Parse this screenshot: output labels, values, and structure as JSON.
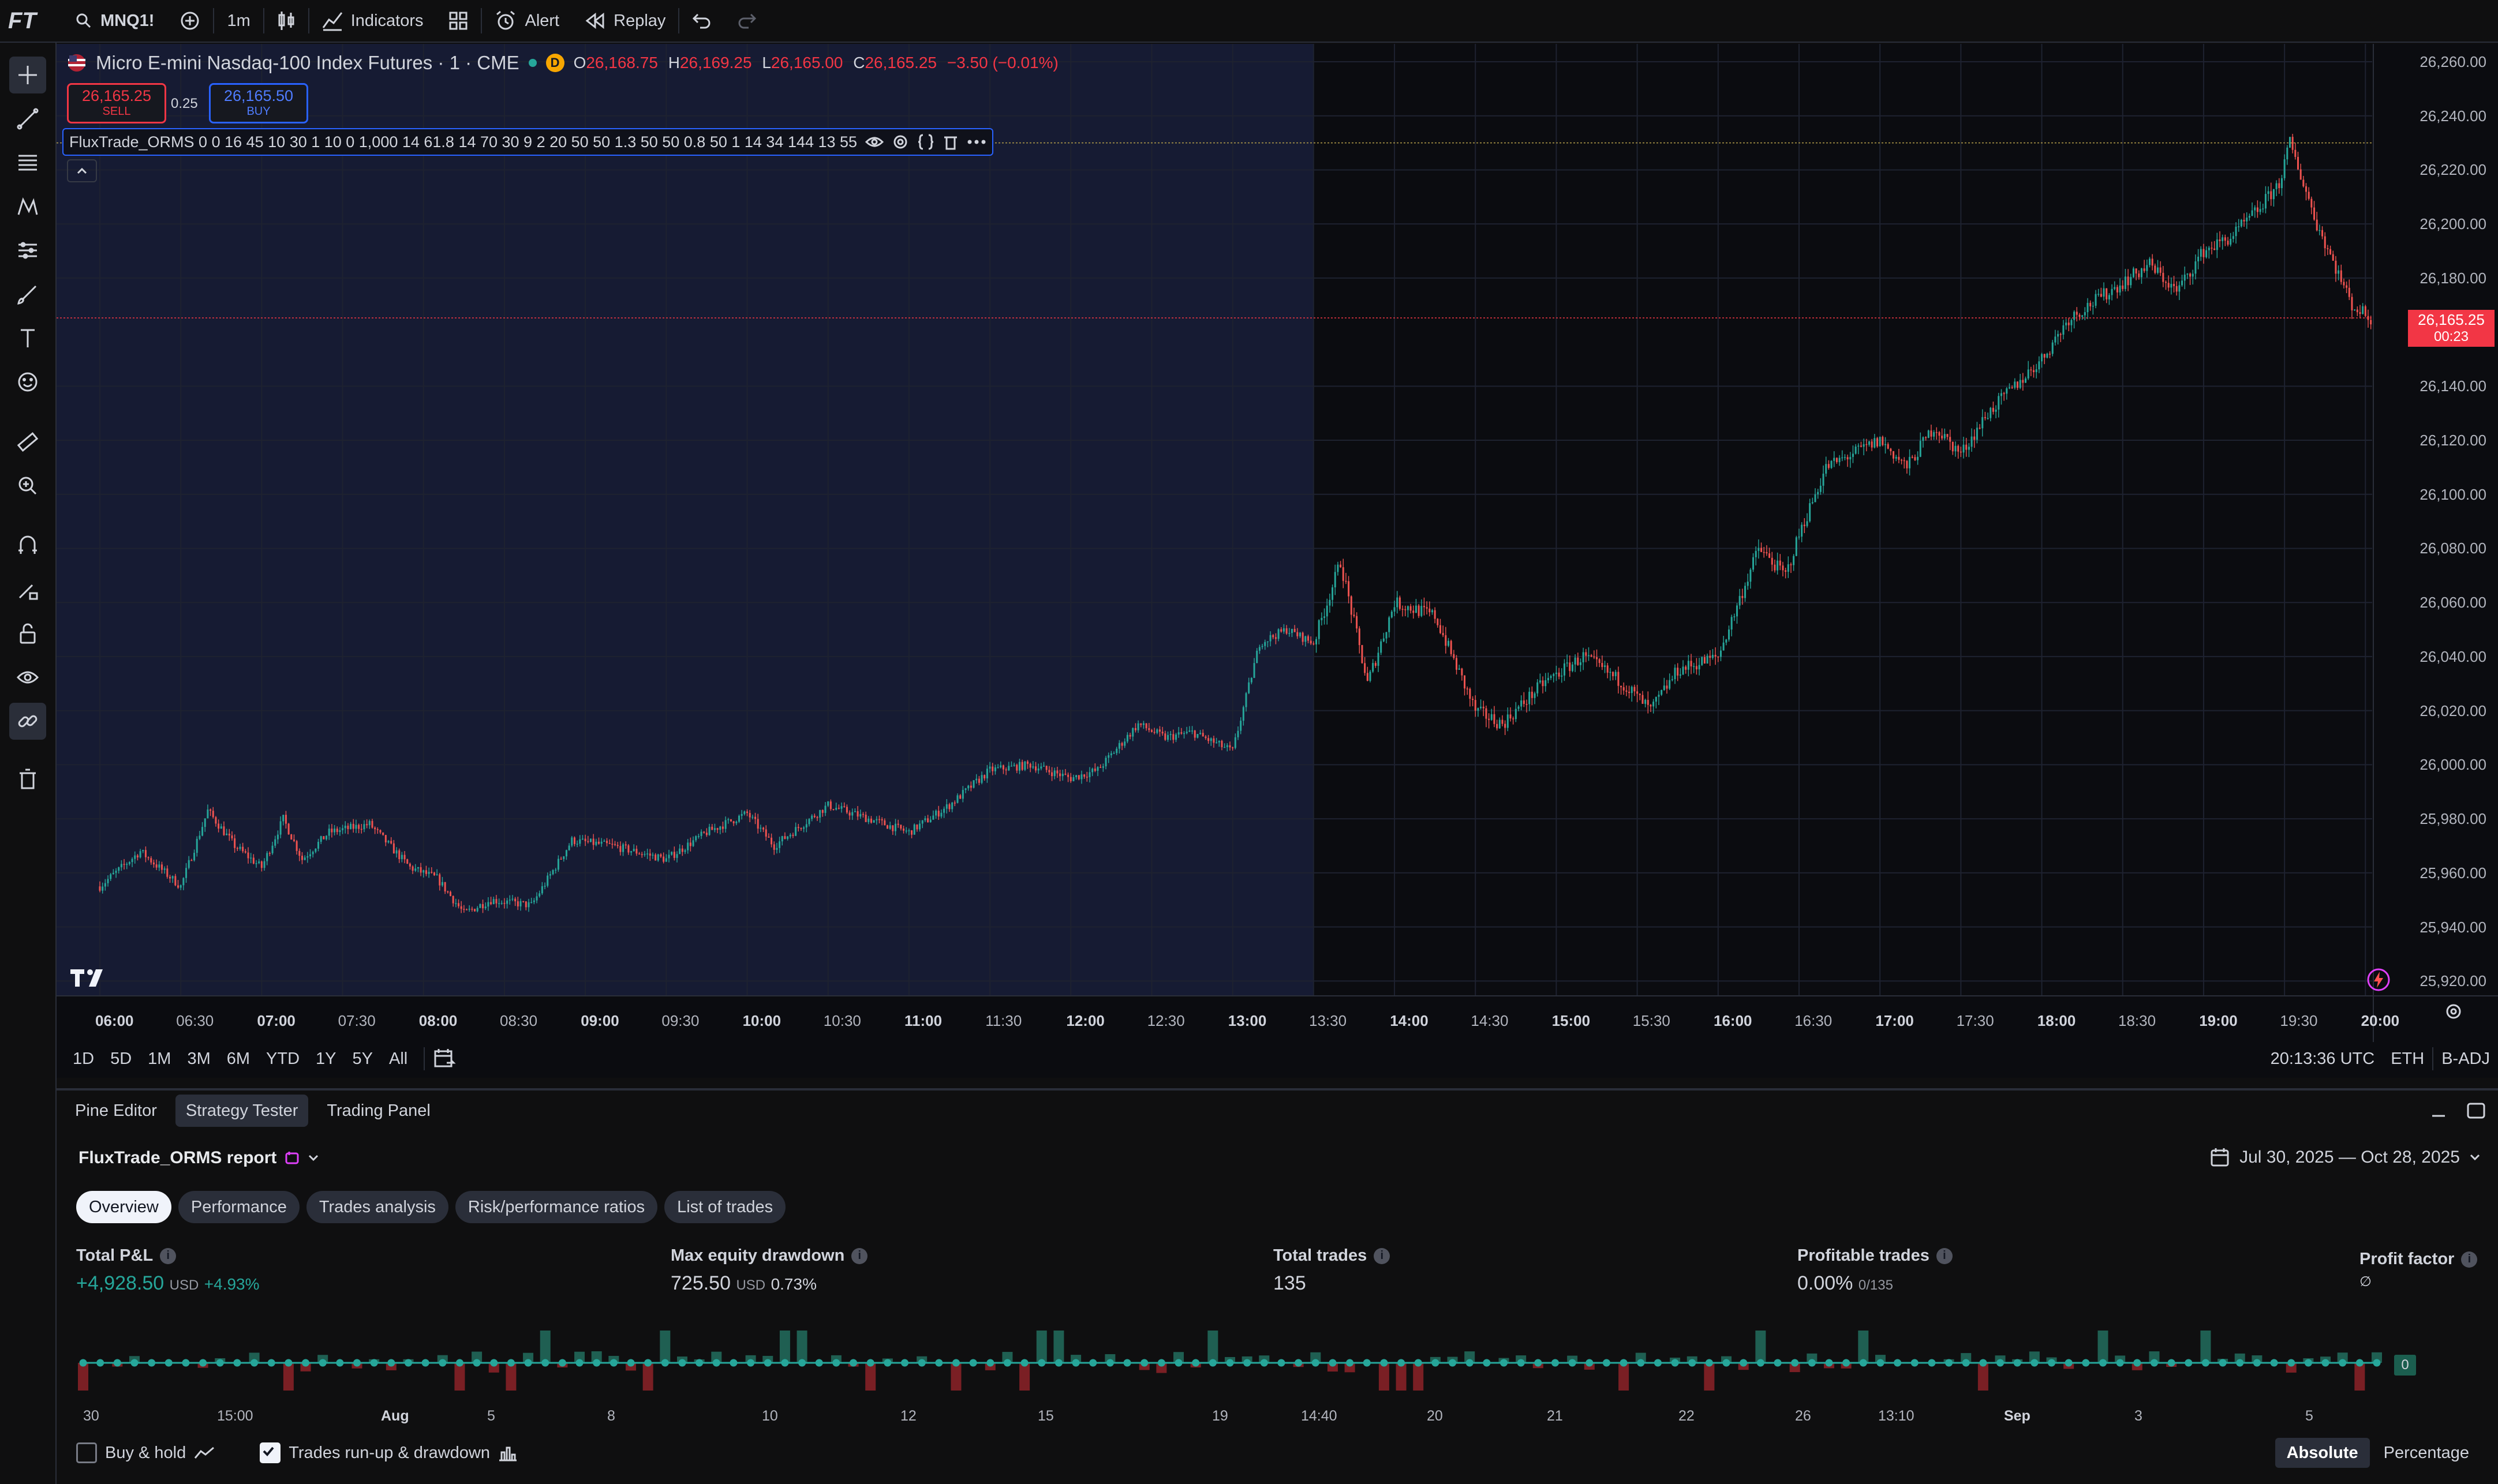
{
  "topbar": {
    "logo": "FT",
    "symbol": "MNQ1!",
    "interval": "1m",
    "indicators_label": "Indicators",
    "alert_label": "Alert",
    "replay_label": "Replay"
  },
  "legend": {
    "title": "Micro E-mini Nasdaq-100 Index Futures · 1 · CME",
    "badge": "D",
    "o_label": "O",
    "o": "26,168.75",
    "h_label": "H",
    "h": "26,169.25",
    "l_label": "L",
    "l": "26,165.00",
    "c_label": "C",
    "c": "26,165.25",
    "change": "−3.50 (−0.01%)"
  },
  "trade": {
    "sell_price": "26,165.25",
    "sell_label": "SELL",
    "spread": "0.25",
    "buy_price": "26,165.50",
    "buy_label": "BUY"
  },
  "indicator": {
    "text": "FluxTrade_ORMS 0 0 16 45 10 30 1 10 0 1,000 14 61.8 14 70 30 9 2 20 50 50 1.3 50 50 0.8 50 1 14 34 144 13 55"
  },
  "price_axis": {
    "labels": [
      "26,260.00",
      "26,240.00",
      "26,220.00",
      "26,200.00",
      "26,180.00",
      "26,140.00",
      "26,120.00",
      "26,100.00",
      "26,080.00",
      "26,060.00",
      "26,040.00",
      "26,020.00",
      "26,000.00",
      "25,980.00",
      "25,960.00",
      "25,940.00",
      "25,920.00"
    ],
    "current_price": "26,165.25",
    "countdown": "00:23"
  },
  "time_axis": {
    "labels": [
      "06:00",
      "06:30",
      "07:00",
      "07:30",
      "08:00",
      "08:30",
      "09:00",
      "09:30",
      "10:00",
      "10:30",
      "11:00",
      "11:30",
      "12:00",
      "12:30",
      "13:00",
      "13:30",
      "14:00",
      "14:30",
      "15:00",
      "15:30",
      "16:00",
      "16:30",
      "17:00",
      "17:30",
      "18:00",
      "18:30",
      "19:00",
      "19:30",
      "20:00"
    ]
  },
  "chart_data": {
    "type": "candlestick",
    "interval": "1m",
    "session_shading_end": "13:30",
    "ylim": [
      25915,
      26265
    ],
    "path_keypoints": [
      [
        "06:00",
        25955
      ],
      [
        "06:15",
        25968
      ],
      [
        "06:30",
        25955
      ],
      [
        "06:40",
        25983
      ],
      [
        "06:50",
        25970
      ],
      [
        "07:00",
        25962
      ],
      [
        "07:08",
        25980
      ],
      [
        "07:15",
        25965
      ],
      [
        "07:25",
        25975
      ],
      [
        "07:40",
        25978
      ],
      [
        "07:55",
        25962
      ],
      [
        "08:05",
        25958
      ],
      [
        "08:15",
        25945
      ],
      [
        "08:25",
        25950
      ],
      [
        "08:40",
        25948
      ],
      [
        "08:55",
        25972
      ],
      [
        "09:10",
        25970
      ],
      [
        "09:30",
        25965
      ],
      [
        "09:45",
        25975
      ],
      [
        "10:00",
        25982
      ],
      [
        "10:10",
        25970
      ],
      [
        "10:30",
        25985
      ],
      [
        "10:45",
        25980
      ],
      [
        "11:00",
        25975
      ],
      [
        "11:15",
        25985
      ],
      [
        "11:30",
        25998
      ],
      [
        "11:45",
        26000
      ],
      [
        "12:00",
        25995
      ],
      [
        "12:10",
        25998
      ],
      [
        "12:25",
        26015
      ],
      [
        "12:35",
        26010
      ],
      [
        "12:45",
        26012
      ],
      [
        "13:00",
        26005
      ],
      [
        "13:10",
        26045
      ],
      [
        "13:20",
        26050
      ],
      [
        "13:30",
        26045
      ],
      [
        "13:40",
        26075
      ],
      [
        "13:50",
        26030
      ],
      [
        "14:00",
        26060
      ],
      [
        "14:15",
        26055
      ],
      [
        "14:30",
        26020
      ],
      [
        "14:40",
        26015
      ],
      [
        "14:55",
        26030
      ],
      [
        "15:10",
        26040
      ],
      [
        "15:25",
        26030
      ],
      [
        "15:35",
        26020
      ],
      [
        "15:45",
        26035
      ],
      [
        "16:00",
        26040
      ],
      [
        "16:15",
        26080
      ],
      [
        "16:25",
        26070
      ],
      [
        "16:30",
        26085
      ],
      [
        "16:40",
        26110
      ],
      [
        "16:50",
        26115
      ],
      [
        "17:00",
        26120
      ],
      [
        "17:10",
        26110
      ],
      [
        "17:20",
        26125
      ],
      [
        "17:30",
        26115
      ],
      [
        "17:40",
        26130
      ],
      [
        "17:50",
        26140
      ],
      [
        "18:00",
        26150
      ],
      [
        "18:10",
        26165
      ],
      [
        "18:25",
        26175
      ],
      [
        "18:40",
        26185
      ],
      [
        "18:50",
        26175
      ],
      [
        "19:00",
        26190
      ],
      [
        "19:10",
        26195
      ],
      [
        "19:20",
        26205
      ],
      [
        "19:28",
        26215
      ],
      [
        "19:32",
        26230
      ],
      [
        "19:42",
        26200
      ],
      [
        "19:55",
        26170
      ],
      [
        "20:02",
        26165
      ]
    ]
  },
  "timeframes": [
    "1D",
    "5D",
    "1M",
    "3M",
    "6M",
    "YTD",
    "1Y",
    "5Y",
    "All"
  ],
  "status": {
    "clock": "20:13:36 UTC",
    "session": "ETH",
    "adj": "B-ADJ"
  },
  "panel_tabs": [
    "Pine Editor",
    "Strategy Tester",
    "Trading Panel"
  ],
  "report": {
    "title": "FluxTrade_ORMS report",
    "date_range": "Jul 30, 2025 — Oct 28, 2025",
    "tabs": [
      "Overview",
      "Performance",
      "Trades analysis",
      "Risk/performance ratios",
      "List of trades"
    ],
    "metrics": {
      "pnl_label": "Total P&L",
      "pnl_value": "+4,928.50",
      "pnl_currency": "USD",
      "pnl_pct": "+4.93%",
      "dd_label": "Max equity drawdown",
      "dd_value": "725.50",
      "dd_currency": "USD",
      "dd_pct": "0.73%",
      "trades_label": "Total trades",
      "trades_value": "135",
      "profitable_label": "Profitable trades",
      "profitable_value": "0.00%",
      "profitable_sub": "0/135",
      "pf_label": "Profit factor",
      "pf_value": "∅"
    },
    "equity_zero_label": "0",
    "equity_x_labels": [
      "30",
      "15:00",
      "Aug",
      "5",
      "8",
      "10",
      "12",
      "15",
      "19",
      "14:40",
      "20",
      "21",
      "22",
      "26",
      "13:10",
      "Sep",
      "3",
      "5"
    ],
    "buy_hold_label": "Buy & hold",
    "runup_label": "Trades run-up & drawdown",
    "absolute_label": "Absolute",
    "percentage_label": "Percentage"
  },
  "colors": {
    "up": "#26a69a",
    "down": "#ef5350",
    "session": "#161b33",
    "accent": "#2962ff"
  }
}
